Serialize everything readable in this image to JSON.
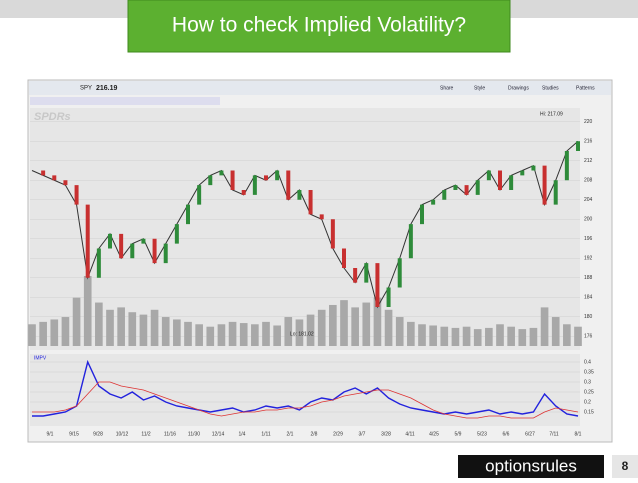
{
  "slide": {
    "title": "How to check Implied Volatility?",
    "page": "8",
    "logo": "optionsrules"
  },
  "toolbar": {
    "symbol": "SPY",
    "price": "216.19",
    "buttons": [
      "Share",
      "Style",
      "Drawings",
      "Studies",
      "Patterns"
    ]
  },
  "chart_data": {
    "type": "line",
    "watermark": "SPDRs",
    "annotations": {
      "high": "Hi: 217.09",
      "low": "Lo: 181.02"
    },
    "values": [
      210,
      209,
      208,
      207,
      203,
      188,
      194,
      197,
      192,
      195,
      196,
      191,
      195,
      199,
      203,
      207,
      209,
      210,
      206,
      205,
      209,
      208,
      210,
      204,
      206,
      201,
      200,
      194,
      190,
      187,
      191,
      182,
      186,
      192,
      199,
      203,
      204,
      206,
      207,
      205,
      208,
      210,
      206,
      209,
      210,
      211,
      203,
      208,
      214,
      216
    ],
    "color": "#333333",
    "ylim": [
      174,
      222
    ],
    "yticks": [
      176,
      180,
      184,
      188,
      192,
      196,
      200,
      204,
      208,
      212,
      216,
      220
    ],
    "volume": [
      90,
      100,
      110,
      120,
      200,
      290,
      180,
      150,
      160,
      140,
      130,
      150,
      120,
      110,
      100,
      90,
      80,
      90,
      100,
      95,
      90,
      100,
      85,
      120,
      110,
      130,
      150,
      170,
      190,
      160,
      180,
      200,
      150,
      120,
      100,
      90,
      85,
      80,
      75,
      80,
      70,
      75,
      90,
      80,
      70,
      75,
      160,
      120,
      90,
      80
    ],
    "volume_color": "#a8a8a8",
    "xtick_labels": [
      "9/1",
      "9/15",
      "9/28",
      "10/12",
      "11/2",
      "11/16",
      "11/30",
      "12/14",
      "1/4",
      "1/11",
      "2/1",
      "2/8",
      "2/29",
      "3/7",
      "3/28",
      "4/11",
      "4/25",
      "5/9",
      "5/23",
      "6/6",
      "6/27",
      "7/11",
      "8/1"
    ],
    "lower": {
      "series": [
        {
          "name": "IMPV",
          "color": "#2222dd",
          "values": [
            0.13,
            0.13,
            0.14,
            0.15,
            0.18,
            0.4,
            0.28,
            0.24,
            0.22,
            0.25,
            0.21,
            0.23,
            0.2,
            0.18,
            0.17,
            0.16,
            0.15,
            0.16,
            0.17,
            0.15,
            0.16,
            0.18,
            0.17,
            0.18,
            0.16,
            0.2,
            0.22,
            0.21,
            0.25,
            0.27,
            0.24,
            0.27,
            0.22,
            0.19,
            0.17,
            0.16,
            0.15,
            0.14,
            0.15,
            0.14,
            0.15,
            0.16,
            0.14,
            0.15,
            0.14,
            0.15,
            0.24,
            0.18,
            0.14,
            0.13
          ]
        },
        {
          "color": "#dd3333",
          "values": [
            0.15,
            0.15,
            0.15,
            0.16,
            0.18,
            0.24,
            0.3,
            0.3,
            0.28,
            0.27,
            0.26,
            0.24,
            0.22,
            0.2,
            0.18,
            0.16,
            0.14,
            0.13,
            0.14,
            0.15,
            0.15,
            0.16,
            0.16,
            0.17,
            0.17,
            0.18,
            0.2,
            0.21,
            0.23,
            0.24,
            0.25,
            0.26,
            0.26,
            0.24,
            0.22,
            0.19,
            0.16,
            0.14,
            0.13,
            0.12,
            0.12,
            0.13,
            0.13,
            0.12,
            0.12,
            0.12,
            0.15,
            0.17,
            0.16,
            0.15
          ]
        }
      ],
      "ylim": [
        0.1,
        0.42
      ],
      "yticks": [
        0.15,
        0.2,
        0.25,
        0.3,
        0.35,
        0.4
      ]
    }
  }
}
